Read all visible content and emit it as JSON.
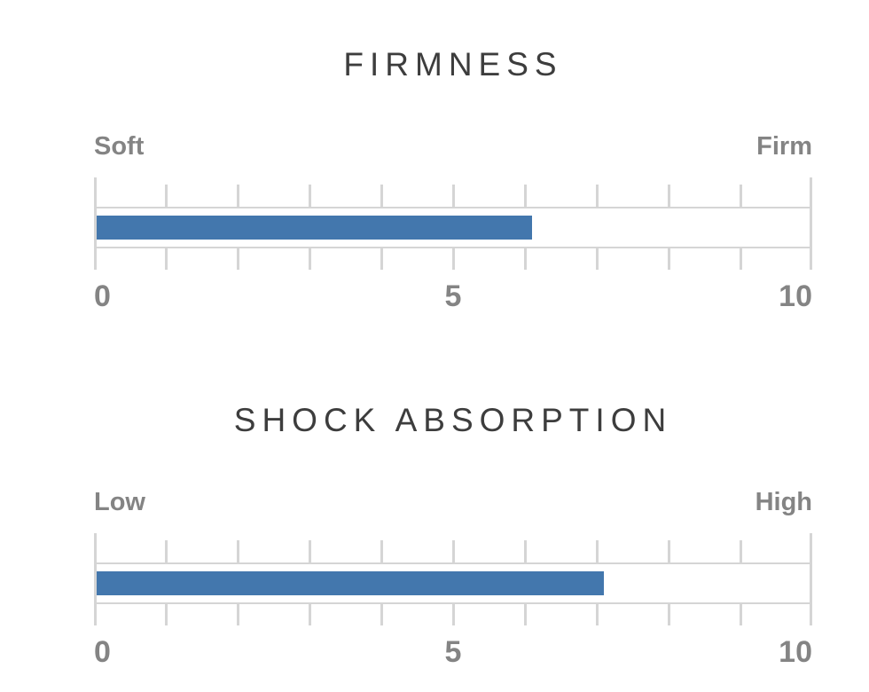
{
  "colors": {
    "bar": "#4377ad",
    "axis_line": "#d5d5d5",
    "label_text": "#848484",
    "title_text": "#3d3d3d",
    "background": "#ffffff"
  },
  "chart_data": [
    {
      "type": "bar",
      "orientation": "horizontal",
      "title": "FIRMNESS",
      "left_label": "Soft",
      "right_label": "Firm",
      "value": 6.1,
      "xlim": [
        0,
        10
      ],
      "tick_interval": 1,
      "tick_labels": [
        "0",
        "5",
        "10"
      ],
      "tick_label_positions": [
        0,
        5,
        10
      ],
      "bar_color": "#4377ad",
      "grid": false,
      "legend": false
    },
    {
      "type": "bar",
      "orientation": "horizontal",
      "title": "SHOCK ABSORPTION",
      "left_label": "Low",
      "right_label": "High",
      "value": 7.1,
      "xlim": [
        0,
        10
      ],
      "tick_interval": 1,
      "tick_labels": [
        "0",
        "5",
        "10"
      ],
      "tick_label_positions": [
        0,
        5,
        10
      ],
      "bar_color": "#4377ad",
      "grid": false,
      "legend": false
    }
  ]
}
